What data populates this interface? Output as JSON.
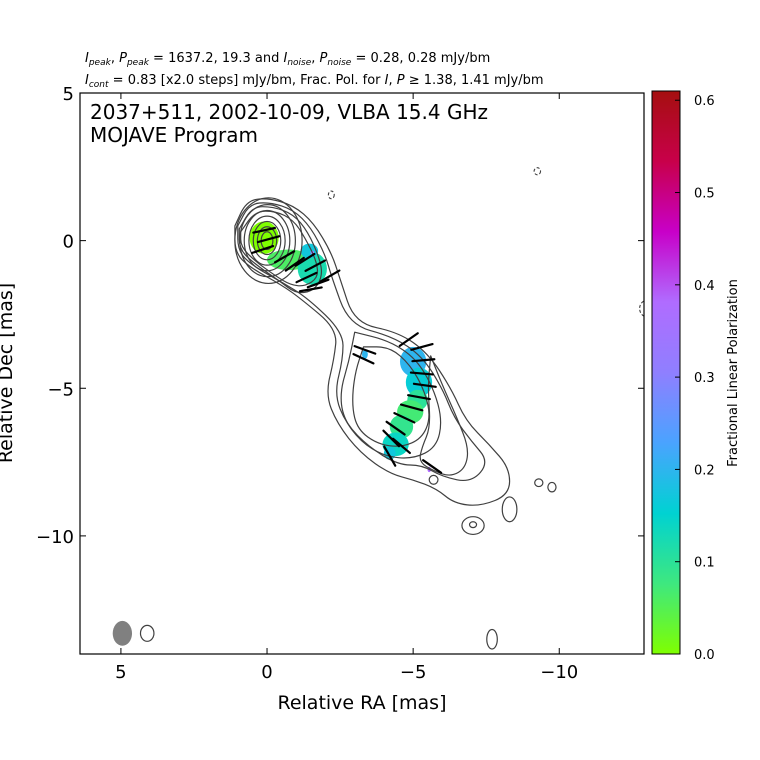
{
  "header": {
    "line1": {
      "i_peak_sym": "I",
      "i_peak_sub": "peak",
      "p_peak_sym": "P",
      "p_peak_sub": "peak",
      "peak_values": " = 1637.2, 19.3 and ",
      "i_noise_sym": "I",
      "i_noise_sub": "noise",
      "p_noise_sym": "P",
      "p_noise_sub": "noise",
      "noise_values": " = 0.28, 0.28 mJy/bm"
    },
    "line2": {
      "i_cont_sym": "I",
      "i_cont_sub": "cont",
      "cont_text": " = 0.83 [x2.0 steps] mJy/bm, Frac. Pol. for ",
      "i_sym": "I",
      "p_sym": "P",
      "ge_text": " ≥ 1.38, 1.41 mJy/bm"
    }
  },
  "chart_data": {
    "type": "heatmap",
    "title_line1": "2037+511, 2002-10-09, VLBA 15.4 GHz",
    "title_line2": "MOJAVE Program",
    "xlabel": "Relative RA [mas]",
    "ylabel": "Relative Dec [mas]",
    "xlim": [
      6.4,
      -12.9
    ],
    "ylim": [
      -14.0,
      5.0
    ],
    "xticks": [
      5,
      0,
      -5,
      -10
    ],
    "yticks": [
      5,
      0,
      -5,
      -10
    ],
    "colorbar": {
      "label": "Fractional Linear Polarization",
      "range": [
        0.0,
        0.61
      ],
      "ticks": [
        0.0,
        0.1,
        0.2,
        0.3,
        0.4,
        0.5,
        0.6
      ],
      "colors": [
        "#7fff00",
        "#3ee87f",
        "#00d2d2",
        "#4aa3ff",
        "#8f7fff",
        "#b06cff",
        "#c800c8",
        "#c8004a",
        "#a50f0f"
      ]
    },
    "contour_color": "#404040",
    "core_contours": [
      {
        "x": -0.05,
        "y": 0.0,
        "rx": 1.15,
        "ry": 1.45
      },
      {
        "x": -0.02,
        "y": 0.0,
        "rx": 0.95,
        "ry": 1.22
      },
      {
        "x": 0.0,
        "y": 0.0,
        "rx": 0.78,
        "ry": 1.02
      },
      {
        "x": 0.0,
        "y": 0.0,
        "rx": 0.62,
        "ry": 0.83
      },
      {
        "x": 0.0,
        "y": 0.0,
        "rx": 0.47,
        "ry": 0.65
      },
      {
        "x": 0.0,
        "y": 0.0,
        "rx": 0.33,
        "ry": 0.47
      },
      {
        "x": 0.0,
        "y": 0.0,
        "rx": 0.2,
        "ry": 0.3
      }
    ],
    "contour_paths": [
      [
        [
          1.1,
          0.5
        ],
        [
          0.7,
          1.35
        ],
        [
          0.0,
          1.45
        ],
        [
          -0.9,
          1.2
        ],
        [
          -1.6,
          0.6
        ],
        [
          -2.2,
          -0.4
        ],
        [
          -2.5,
          -1.3
        ],
        [
          -3.0,
          -2.8
        ],
        [
          -4.5,
          -3.1
        ],
        [
          -5.5,
          -3.8
        ],
        [
          -6.3,
          -5.0
        ],
        [
          -6.8,
          -6.1
        ],
        [
          -7.6,
          -6.9
        ],
        [
          -8.3,
          -7.7
        ],
        [
          -8.3,
          -8.6
        ],
        [
          -7.3,
          -9.0
        ],
        [
          -6.4,
          -8.9
        ],
        [
          -5.8,
          -8.4
        ],
        [
          -5.0,
          -8.1
        ],
        [
          -4.2,
          -7.9
        ],
        [
          -3.2,
          -7.2
        ],
        [
          -2.4,
          -6.2
        ],
        [
          -2.0,
          -5.2
        ],
        [
          -2.3,
          -4.0
        ],
        [
          -2.4,
          -3.0
        ],
        [
          -1.2,
          -2.0
        ],
        [
          -0.5,
          -1.5
        ],
        [
          0.6,
          -0.9
        ],
        [
          1.1,
          -0.4
        ],
        [
          1.1,
          0.5
        ]
      ],
      [
        [
          1.0,
          0.5
        ],
        [
          0.6,
          1.25
        ],
        [
          -0.1,
          1.3
        ],
        [
          -0.9,
          1.05
        ],
        [
          -1.5,
          0.45
        ],
        [
          -2.0,
          -0.5
        ],
        [
          -2.2,
          -1.2
        ],
        [
          -2.8,
          -2.85
        ],
        [
          -4.3,
          -3.25
        ],
        [
          -5.3,
          -3.9
        ],
        [
          -6.0,
          -5.0
        ],
        [
          -6.4,
          -6.0
        ],
        [
          -7.0,
          -6.8
        ],
        [
          -7.6,
          -7.5
        ],
        [
          -7.0,
          -8.2
        ],
        [
          -6.0,
          -8.0
        ],
        [
          -5.3,
          -7.6
        ],
        [
          -4.5,
          -7.6
        ],
        [
          -3.5,
          -7.0
        ],
        [
          -2.7,
          -6.2
        ],
        [
          -2.3,
          -5.2
        ],
        [
          -2.6,
          -4.0
        ],
        [
          -2.6,
          -3.1
        ],
        [
          -1.4,
          -1.95
        ],
        [
          -0.5,
          -1.4
        ],
        [
          0.5,
          -0.85
        ],
        [
          1.0,
          -0.35
        ],
        [
          1.0,
          0.5
        ]
      ],
      [
        [
          0.95,
          0.4
        ],
        [
          0.5,
          1.15
        ],
        [
          -0.2,
          1.15
        ],
        [
          -0.9,
          0.9
        ],
        [
          -1.4,
          0.3
        ],
        [
          -1.8,
          -0.6
        ],
        [
          -1.9,
          -1.2
        ],
        [
          -1.6,
          -1.7
        ],
        [
          -1.0,
          -1.8
        ],
        [
          -0.4,
          -1.35
        ],
        [
          0.4,
          -0.8
        ],
        [
          0.95,
          -0.3
        ],
        [
          0.95,
          0.4
        ]
      ],
      [
        [
          0.9,
          0.3
        ],
        [
          0.4,
          1.0
        ],
        [
          -0.3,
          1.0
        ],
        [
          -0.9,
          0.7
        ],
        [
          -1.3,
          0.1
        ],
        [
          -1.7,
          -0.7
        ],
        [
          -1.75,
          -1.25
        ],
        [
          -1.3,
          -1.55
        ],
        [
          -0.8,
          -1.5
        ],
        [
          -0.3,
          -1.2
        ],
        [
          0.4,
          -0.7
        ],
        [
          0.9,
          -0.2
        ],
        [
          0.9,
          0.3
        ]
      ],
      [
        [
          -3.0,
          -3.1
        ],
        [
          -4.2,
          -3.4
        ],
        [
          -5.1,
          -4.0
        ],
        [
          -5.7,
          -5.0
        ],
        [
          -6.0,
          -6.1
        ],
        [
          -5.8,
          -7.0
        ],
        [
          -5.0,
          -7.4
        ],
        [
          -4.0,
          -7.3
        ],
        [
          -3.2,
          -6.8
        ],
        [
          -2.6,
          -6.0
        ],
        [
          -2.5,
          -5.1
        ],
        [
          -2.8,
          -4.1
        ],
        [
          -3.0,
          -3.1
        ]
      ],
      [
        [
          -3.3,
          -3.6
        ],
        [
          -4.2,
          -3.6
        ],
        [
          -4.9,
          -4.2
        ],
        [
          -5.4,
          -5.1
        ],
        [
          -5.6,
          -6.0
        ],
        [
          -5.3,
          -6.7
        ],
        [
          -4.6,
          -7.0
        ],
        [
          -3.8,
          -6.9
        ],
        [
          -3.1,
          -6.4
        ],
        [
          -2.9,
          -5.6
        ],
        [
          -3.0,
          -4.5
        ],
        [
          -3.3,
          -3.6
        ]
      ],
      [
        [
          -5.6,
          -3.9
        ],
        [
          -6.0,
          -4.9
        ],
        [
          -6.5,
          -6.0
        ],
        [
          -6.9,
          -7.0
        ],
        [
          -6.8,
          -7.7
        ],
        [
          -6.3,
          -8.0
        ],
        [
          -5.7,
          -7.8
        ],
        [
          -5.2,
          -7.5
        ],
        [
          -5.3,
          -7.0
        ],
        [
          -5.6,
          -6.3
        ],
        [
          -5.5,
          -5.0
        ],
        [
          -5.6,
          -3.9
        ]
      ]
    ],
    "small_contours": [
      {
        "x": -7.05,
        "y": -9.65,
        "rx": 0.38,
        "ry": 0.3
      },
      {
        "x": -7.05,
        "y": -9.62,
        "rx": 0.12,
        "ry": 0.1
      },
      {
        "x": -8.3,
        "y": -9.1,
        "rx": 0.25,
        "ry": 0.42
      },
      {
        "x": -9.3,
        "y": -8.2,
        "rx": 0.14,
        "ry": 0.13
      },
      {
        "x": -9.75,
        "y": -8.35,
        "rx": 0.14,
        "ry": 0.16
      },
      {
        "x": -5.7,
        "y": -8.1,
        "rx": 0.15,
        "ry": 0.15
      },
      {
        "x": -7.7,
        "y": -13.5,
        "rx": 0.18,
        "ry": 0.33
      },
      {
        "x": 4.1,
        "y": -13.3,
        "rx": 0.23,
        "ry": 0.27
      }
    ],
    "negative_contours": [
      {
        "x": -2.2,
        "y": 1.55,
        "rx": 0.1,
        "ry": 0.13
      },
      {
        "x": -9.25,
        "y": 2.35,
        "rx": 0.11,
        "ry": 0.12
      },
      {
        "x": -13.0,
        "y": -2.3,
        "rx": 0.25,
        "ry": 0.28
      }
    ],
    "beam": {
      "x": 4.95,
      "y": -13.3,
      "rx": 0.33,
      "ry": 0.42,
      "color": "#808080"
    },
    "pol_regions": [
      {
        "x": 0.1,
        "y": 0.1,
        "rx": 0.5,
        "ry": 0.55,
        "value": 0.0
      },
      {
        "x": -0.75,
        "y": -0.65,
        "rx": 0.75,
        "ry": 0.35,
        "value": 0.06
      },
      {
        "x": -1.55,
        "y": -0.95,
        "rx": 0.5,
        "ry": 0.55,
        "value": 0.12
      },
      {
        "x": -1.45,
        "y": -0.35,
        "rx": 0.3,
        "ry": 0.25,
        "value": 0.17
      },
      {
        "x": -1.55,
        "y": -0.4,
        "rx": 0.06,
        "ry": 0.06,
        "value": 0.34
      },
      {
        "x": -5.0,
        "y": -4.1,
        "rx": 0.45,
        "ry": 0.5,
        "value": 0.2
      },
      {
        "x": -5.2,
        "y": -4.8,
        "rx": 0.45,
        "ry": 0.5,
        "value": 0.16
      },
      {
        "x": -5.15,
        "y": -5.4,
        "rx": 0.35,
        "ry": 0.35,
        "value": 0.1
      },
      {
        "x": -4.9,
        "y": -5.8,
        "rx": 0.45,
        "ry": 0.4,
        "value": 0.07
      },
      {
        "x": -4.6,
        "y": -6.3,
        "rx": 0.4,
        "ry": 0.4,
        "value": 0.09
      },
      {
        "x": -4.4,
        "y": -6.9,
        "rx": 0.45,
        "ry": 0.4,
        "value": 0.14
      },
      {
        "x": -4.2,
        "y": -7.2,
        "rx": 0.2,
        "ry": 0.22,
        "value": 0.17
      },
      {
        "x": -3.35,
        "y": -3.85,
        "rx": 0.1,
        "ry": 0.15,
        "value": 0.2
      },
      {
        "x": -5.55,
        "y": -7.75,
        "rx": 0.06,
        "ry": 0.09,
        "value": 0.38
      }
    ],
    "evpa_ticks": [
      {
        "x": 0.1,
        "y": 0.35,
        "angle": 12
      },
      {
        "x": -0.05,
        "y": 0.05,
        "angle": 15
      },
      {
        "x": 0.15,
        "y": -0.3,
        "angle": 18
      },
      {
        "x": -0.6,
        "y": -0.55,
        "angle": 30
      },
      {
        "x": -0.95,
        "y": -0.8,
        "angle": 35
      },
      {
        "x": -1.3,
        "y": -0.65,
        "angle": 32
      },
      {
        "x": -1.65,
        "y": -0.85,
        "angle": 28
      },
      {
        "x": -1.35,
        "y": -1.25,
        "angle": 25
      },
      {
        "x": -1.75,
        "y": -1.45,
        "angle": 20
      },
      {
        "x": -1.5,
        "y": -1.65,
        "angle": 10
      },
      {
        "x": -2.15,
        "y": -1.2,
        "angle": 30
      },
      {
        "x": -4.85,
        "y": -3.35,
        "angle": 35
      },
      {
        "x": -5.3,
        "y": -3.6,
        "angle": 15
      },
      {
        "x": -5.35,
        "y": -4.05,
        "angle": 5
      },
      {
        "x": -5.3,
        "y": -4.5,
        "angle": -5
      },
      {
        "x": -5.4,
        "y": -4.9,
        "angle": -8
      },
      {
        "x": -5.2,
        "y": -5.3,
        "angle": -10
      },
      {
        "x": -4.95,
        "y": -5.65,
        "angle": -15
      },
      {
        "x": -4.7,
        "y": -6.0,
        "angle": -25
      },
      {
        "x": -4.4,
        "y": -6.35,
        "angle": -35
      },
      {
        "x": -4.25,
        "y": -6.7,
        "angle": -45
      },
      {
        "x": -4.6,
        "y": -6.95,
        "angle": -40
      },
      {
        "x": -4.2,
        "y": -7.3,
        "angle": -60
      },
      {
        "x": -3.35,
        "y": -3.7,
        "angle": -20
      },
      {
        "x": -3.3,
        "y": -4.0,
        "angle": -25
      },
      {
        "x": -5.65,
        "y": -7.65,
        "angle": -35
      }
    ]
  }
}
